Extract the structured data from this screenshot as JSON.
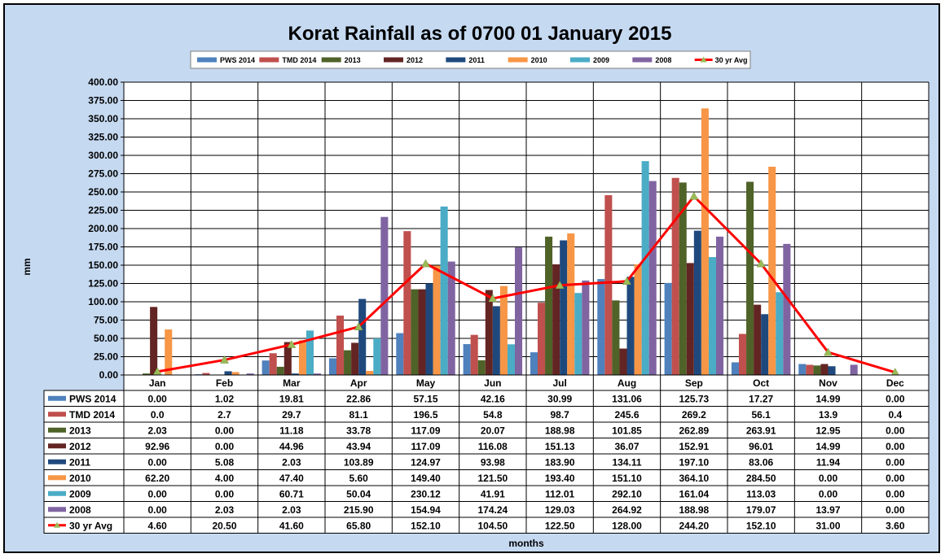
{
  "chart_data": {
    "type": "bar",
    "title": "Korat Rainfall as of 0700 01 January 2015",
    "xlabel": "months",
    "ylabel": "mm",
    "ylim": [
      0,
      400
    ],
    "ytick_step": 25,
    "ytick_labels": [
      "0.00",
      "25.00",
      "50.00",
      "75.00",
      "100.00",
      "125.00",
      "150.00",
      "175.00",
      "200.00",
      "225.00",
      "250.00",
      "275.00",
      "300.00",
      "325.00",
      "350.00",
      "375.00",
      "400.00"
    ],
    "grid": true,
    "legend_position": "top",
    "categories": [
      "Jan",
      "Feb",
      "Mar",
      "Apr",
      "May",
      "Jun",
      "Jul",
      "Aug",
      "Sep",
      "Oct",
      "Nov",
      "Dec"
    ],
    "series": [
      {
        "name": "PWS 2014",
        "type": "bar",
        "color": "#4f81bd",
        "values": [
          0.0,
          1.02,
          19.81,
          22.86,
          57.15,
          42.16,
          30.99,
          131.06,
          125.73,
          17.27,
          14.99,
          0.0
        ],
        "labels": [
          "0.00",
          "1.02",
          "19.81",
          "22.86",
          "57.15",
          "42.16",
          "30.99",
          "131.06",
          "125.73",
          "17.27",
          "14.99",
          "0.00"
        ]
      },
      {
        "name": "TMD 2014",
        "type": "bar",
        "color": "#c0504d",
        "values": [
          0.0,
          2.7,
          29.7,
          81.1,
          196.5,
          54.8,
          98.7,
          245.6,
          269.2,
          56.1,
          13.9,
          0.4
        ],
        "labels": [
          "0.0",
          "2.7",
          "29.7",
          "81.1",
          "196.5",
          "54.8",
          "98.7",
          "245.6",
          "269.2",
          "56.1",
          "13.9",
          "0.4"
        ]
      },
      {
        "name": "2013",
        "type": "bar",
        "color": "#4f6228",
        "values": [
          2.03,
          0.0,
          11.18,
          33.78,
          117.09,
          20.07,
          188.98,
          101.85,
          262.89,
          263.91,
          12.95,
          0.0
        ],
        "labels": [
          "2.03",
          "0.00",
          "11.18",
          "33.78",
          "117.09",
          "20.07",
          "188.98",
          "101.85",
          "262.89",
          "263.91",
          "12.95",
          "0.00"
        ]
      },
      {
        "name": "2012",
        "type": "bar",
        "color": "#632523",
        "values": [
          92.96,
          0.0,
          44.96,
          43.94,
          117.09,
          116.08,
          151.13,
          36.07,
          152.91,
          96.01,
          14.99,
          0.0
        ],
        "labels": [
          "92.96",
          "0.00",
          "44.96",
          "43.94",
          "117.09",
          "116.08",
          "151.13",
          "36.07",
          "152.91",
          "96.01",
          "14.99",
          "0.00"
        ]
      },
      {
        "name": "2011",
        "type": "bar",
        "color": "#1f497d",
        "values": [
          0.0,
          5.08,
          2.03,
          103.89,
          124.97,
          93.98,
          183.9,
          134.11,
          197.1,
          83.06,
          11.94,
          0.0
        ],
        "labels": [
          "0.00",
          "5.08",
          "2.03",
          "103.89",
          "124.97",
          "93.98",
          "183.90",
          "134.11",
          "197.10",
          "83.06",
          "11.94",
          "0.00"
        ]
      },
      {
        "name": "2010",
        "type": "bar",
        "color": "#f79646",
        "values": [
          62.2,
          4.0,
          47.4,
          5.6,
          149.4,
          121.5,
          193.4,
          151.1,
          364.1,
          284.5,
          0.0,
          0.0
        ],
        "labels": [
          "62.20",
          "4.00",
          "47.40",
          "5.60",
          "149.40",
          "121.50",
          "193.40",
          "151.10",
          "364.10",
          "284.50",
          "0.00",
          "0.00"
        ]
      },
      {
        "name": "2009",
        "type": "bar",
        "color": "#4bacc6",
        "values": [
          0.0,
          0.0,
          60.71,
          50.04,
          230.12,
          41.91,
          112.01,
          292.1,
          161.04,
          113.03,
          0.0,
          0.0
        ],
        "labels": [
          "0.00",
          "0.00",
          "60.71",
          "50.04",
          "230.12",
          "41.91",
          "112.01",
          "292.10",
          "161.04",
          "113.03",
          "0.00",
          "0.00"
        ]
      },
      {
        "name": "2008",
        "type": "bar",
        "color": "#8064a2",
        "values": [
          0.0,
          2.03,
          2.03,
          215.9,
          154.94,
          174.24,
          129.03,
          264.92,
          188.98,
          179.07,
          13.97,
          0.0
        ],
        "labels": [
          "0.00",
          "2.03",
          "2.03",
          "215.90",
          "154.94",
          "174.24",
          "129.03",
          "264.92",
          "188.98",
          "179.07",
          "13.97",
          "0.00"
        ]
      },
      {
        "name": "30 yr Avg",
        "type": "line",
        "color": "#ff0000",
        "marker_color": "#9bbb59",
        "values": [
          4.6,
          20.5,
          41.6,
          65.8,
          152.1,
          104.5,
          122.5,
          128.0,
          244.2,
          152.1,
          31.0,
          3.6
        ],
        "labels": [
          "4.60",
          "20.50",
          "41.60",
          "65.80",
          "152.10",
          "104.50",
          "122.50",
          "128.00",
          "244.20",
          "152.10",
          "31.00",
          "3.60"
        ]
      }
    ]
  }
}
